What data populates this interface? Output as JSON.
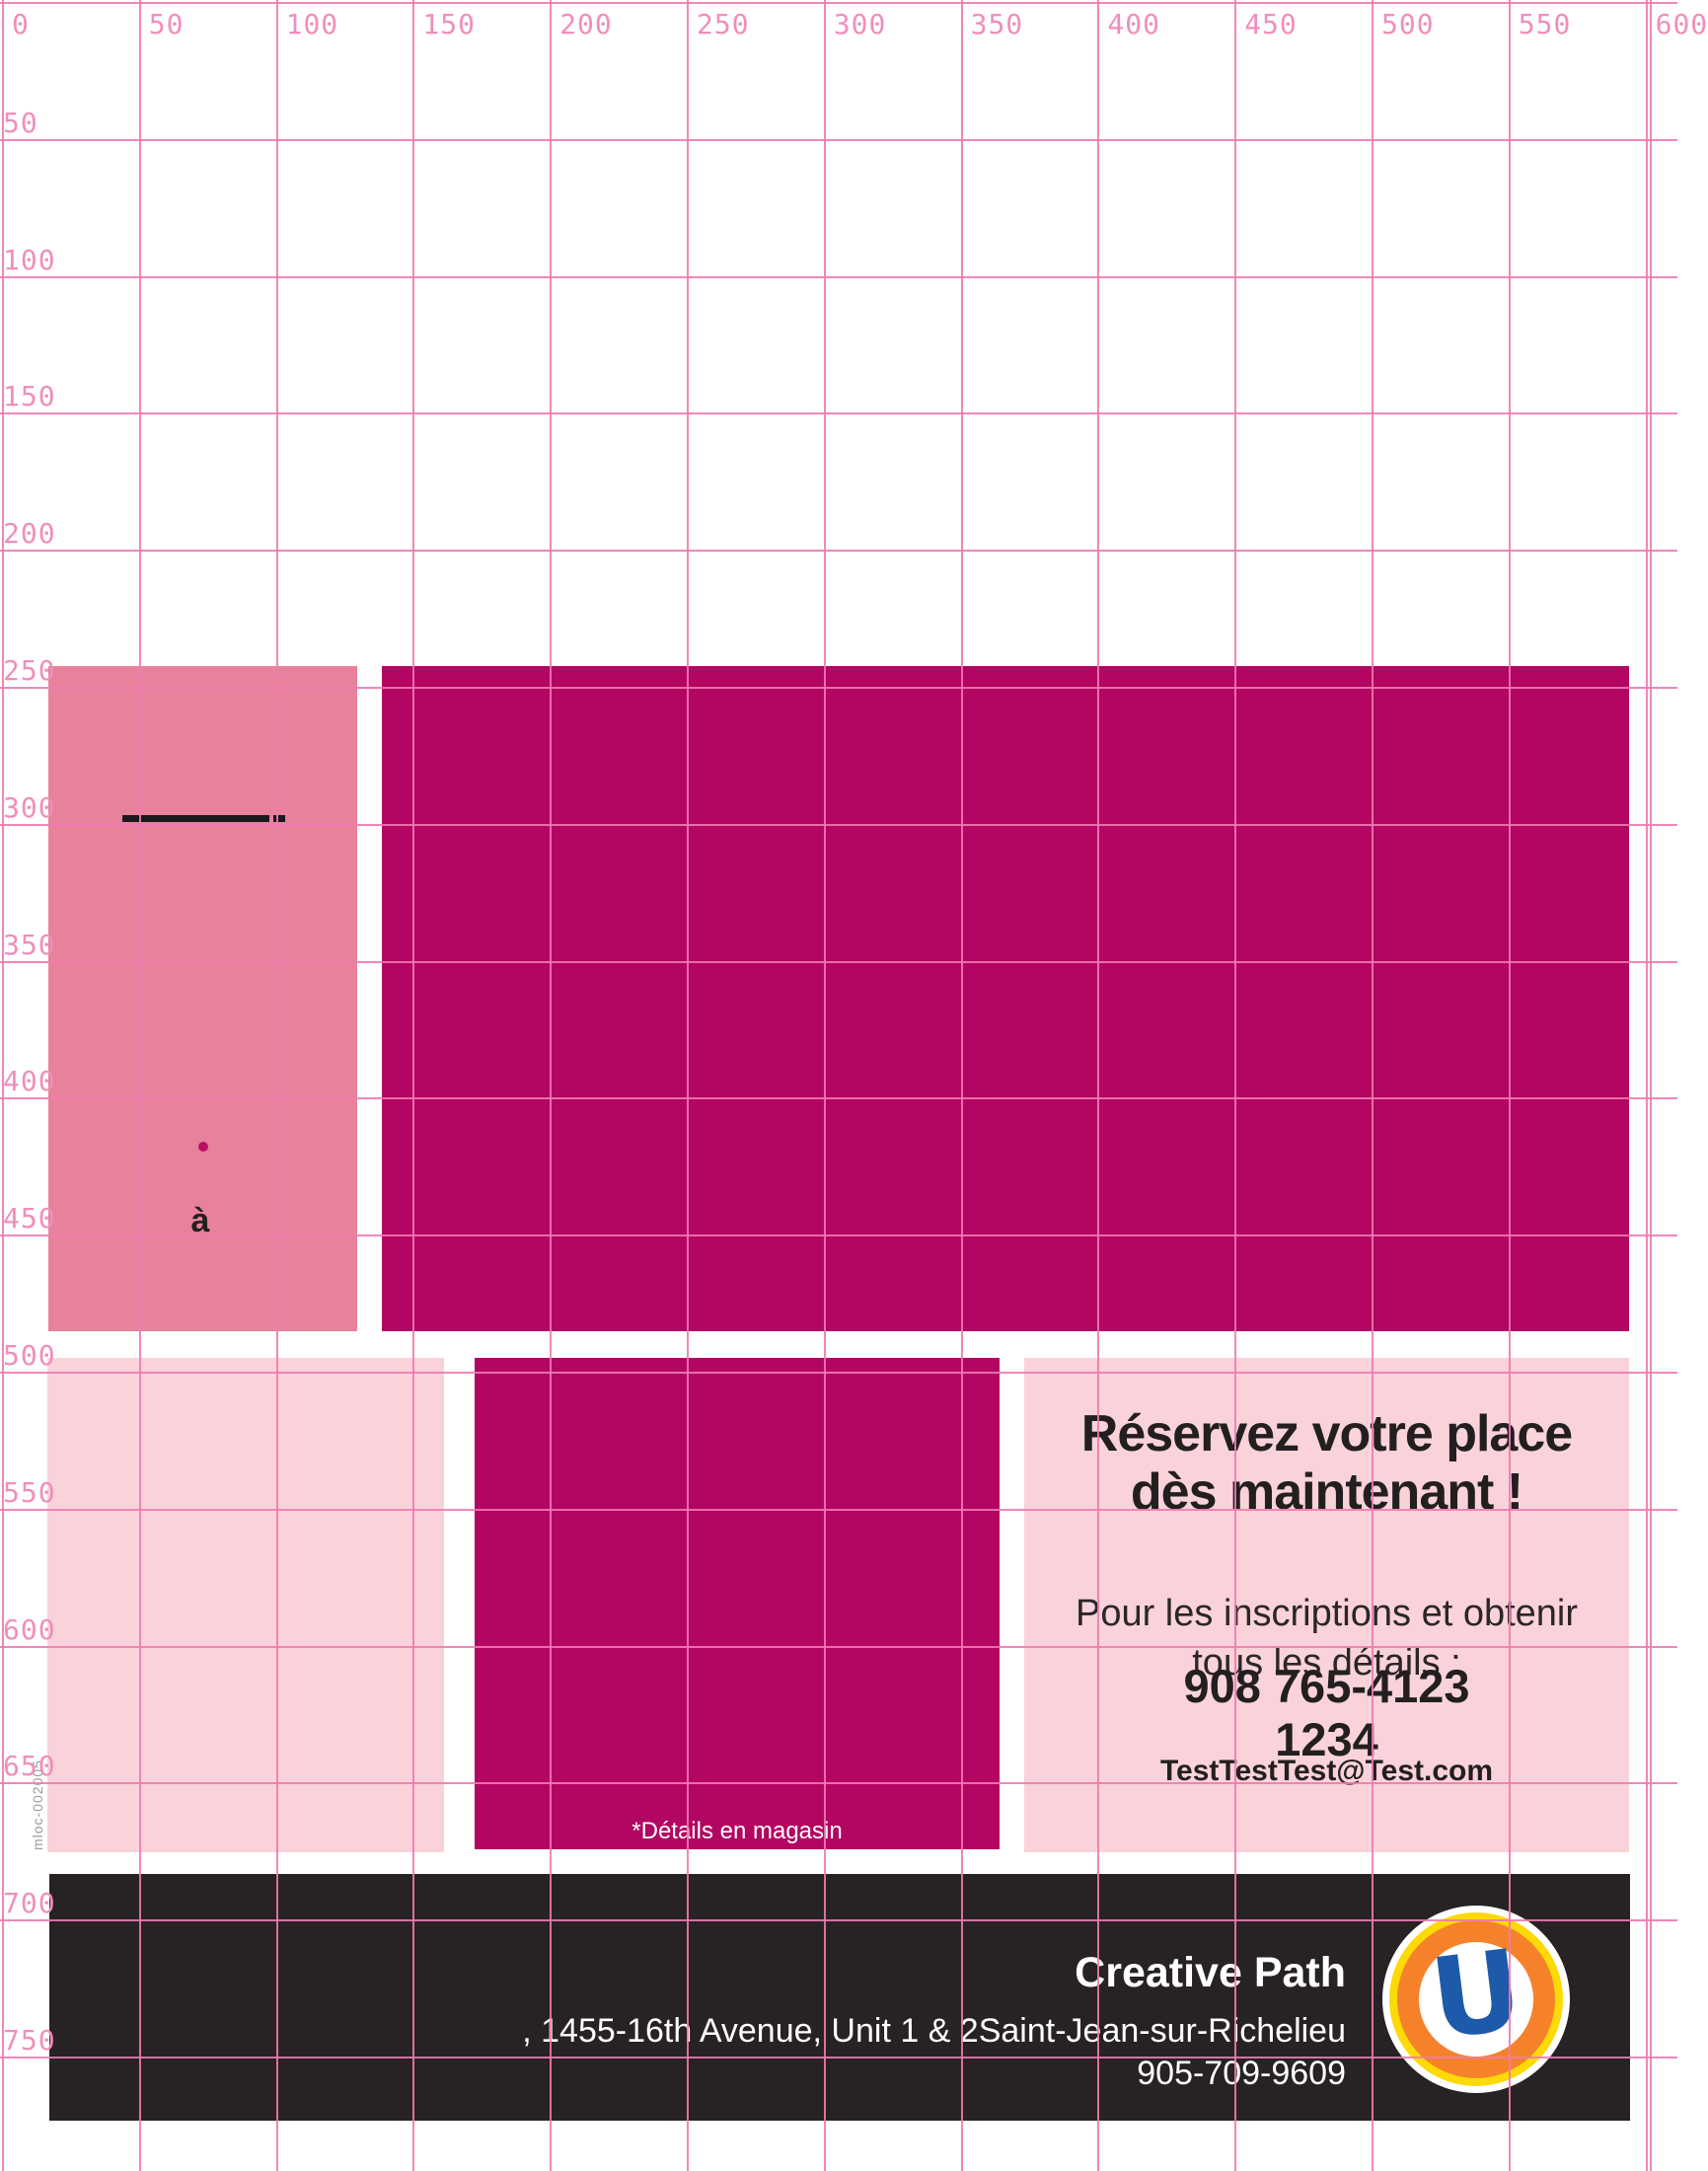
{
  "ruler": {
    "top_labels": [
      "0",
      "50",
      "100",
      "150",
      "200",
      "250",
      "300",
      "350",
      "400",
      "450",
      "500",
      "550",
      "600"
    ],
    "left_labels": [
      "50",
      "100",
      "150",
      "200",
      "250",
      "300",
      "350",
      "400",
      "450",
      "500",
      "550",
      "600",
      "650",
      "700",
      "750"
    ]
  },
  "artboard": {
    "production_code": "mloc-002005",
    "accent_char": "à"
  },
  "promo": {
    "details_note": "*Détails en magasin"
  },
  "contact": {
    "headline_line1": "Réservez votre place",
    "headline_line2": "dès maintenant !",
    "intro_line1": "Pour les inscriptions et obtenir",
    "intro_line2": "tous les détails :",
    "phone_main": "908 765-4123",
    "phone_ext": "1234",
    "email": "TestTestTest@Test.com"
  },
  "footer": {
    "brand": "Creative Path",
    "address": ", 1455-16th Avenue, Unit 1 & 2Saint-Jean-sur-Richelieu",
    "phone": "905-709-9609",
    "logo_letter": "U"
  },
  "colors": {
    "grid_line": "#ee7ab1",
    "ruler_label": "#f08ebd",
    "rose_block": "#e8819b",
    "magenta_block": "#b30562",
    "light_pink_panel": "#f9d3d9",
    "footer_black": "#272223",
    "text_black": "#231f20",
    "logo_blue": "#1d5aa9",
    "logo_orange": "#f5822b",
    "logo_yellow": "#fdd905",
    "dot_magenta": "#b81264"
  }
}
